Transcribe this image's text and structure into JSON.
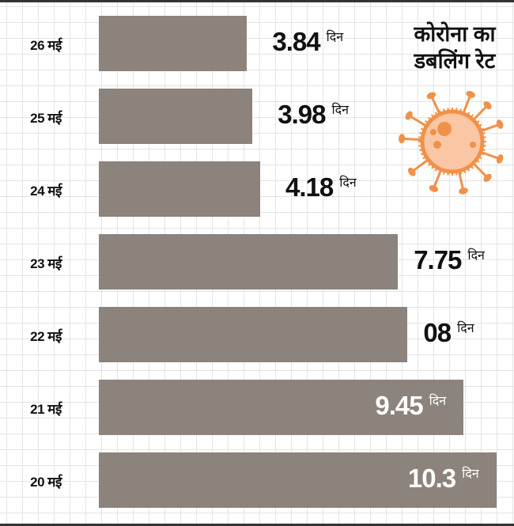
{
  "chart_data": {
    "type": "bar",
    "orientation": "horizontal",
    "title": "कोरोना का डबलिंग रेट",
    "categories": [
      "26 मई",
      "25 मई",
      "24 मई",
      "23 मई",
      "22 मई",
      "21 मई",
      "20 मई"
    ],
    "values": [
      3.84,
      3.98,
      4.18,
      7.75,
      8,
      9.45,
      10.3
    ],
    "value_labels": [
      "3.84",
      "3.98",
      "4.18",
      "7.75",
      "08",
      "9.45",
      "10.3"
    ],
    "unit": "दिन",
    "xlabel": "",
    "ylabel": "",
    "xlim": [
      0,
      10.3
    ],
    "grid": true
  },
  "colors": {
    "bar": "#8b837c",
    "virus": "#f0914a",
    "virus_fill": "#fbc6a4"
  },
  "icon": "virus-icon"
}
